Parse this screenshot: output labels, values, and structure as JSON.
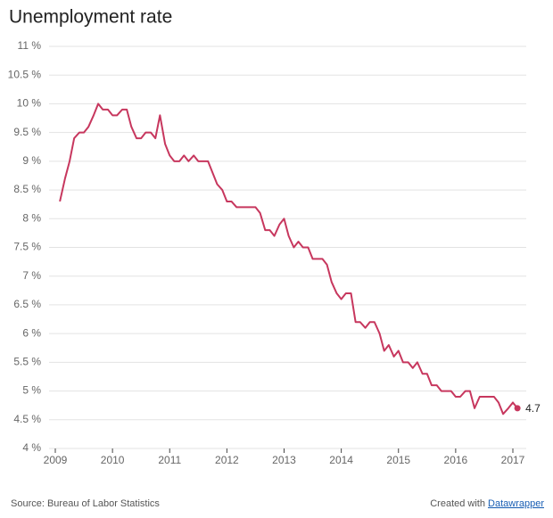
{
  "chart_data": {
    "type": "line",
    "title": "Unemployment rate",
    "x": [
      2009.08,
      2009.17,
      2009.25,
      2009.33,
      2009.42,
      2009.5,
      2009.58,
      2009.67,
      2009.75,
      2009.83,
      2009.92,
      2010.0,
      2010.08,
      2010.17,
      2010.25,
      2010.33,
      2010.42,
      2010.5,
      2010.58,
      2010.67,
      2010.75,
      2010.83,
      2010.92,
      2011.0,
      2011.08,
      2011.17,
      2011.25,
      2011.33,
      2011.42,
      2011.5,
      2011.58,
      2011.67,
      2011.75,
      2011.83,
      2011.92,
      2012.0,
      2012.08,
      2012.17,
      2012.25,
      2012.33,
      2012.42,
      2012.5,
      2012.58,
      2012.67,
      2012.75,
      2012.83,
      2012.92,
      2013.0,
      2013.08,
      2013.17,
      2013.25,
      2013.33,
      2013.42,
      2013.5,
      2013.58,
      2013.67,
      2013.75,
      2013.83,
      2013.92,
      2014.0,
      2014.08,
      2014.17,
      2014.25,
      2014.33,
      2014.42,
      2014.5,
      2014.58,
      2014.67,
      2014.75,
      2014.83,
      2014.92,
      2015.0,
      2015.08,
      2015.17,
      2015.25,
      2015.33,
      2015.42,
      2015.5,
      2015.58,
      2015.67,
      2015.75,
      2015.83,
      2015.92,
      2016.0,
      2016.08,
      2016.17,
      2016.25,
      2016.33,
      2016.42,
      2016.5,
      2016.58,
      2016.67,
      2016.75,
      2016.83,
      2016.92,
      2017.0,
      2017.08
    ],
    "series": [
      {
        "color": "#c7375e",
        "values": [
          8.3,
          8.7,
          9.0,
          9.4,
          9.5,
          9.5,
          9.6,
          9.8,
          10.0,
          9.9,
          9.9,
          9.8,
          9.8,
          9.9,
          9.9,
          9.6,
          9.4,
          9.4,
          9.5,
          9.5,
          9.4,
          9.8,
          9.3,
          9.1,
          9.0,
          9.0,
          9.1,
          9.0,
          9.1,
          9.0,
          9.0,
          9.0,
          8.8,
          8.6,
          8.5,
          8.3,
          8.3,
          8.2,
          8.2,
          8.2,
          8.2,
          8.2,
          8.1,
          7.8,
          7.8,
          7.7,
          7.9,
          8.0,
          7.7,
          7.5,
          7.6,
          7.5,
          7.5,
          7.3,
          7.3,
          7.3,
          7.2,
          6.9,
          6.7,
          6.6,
          6.7,
          6.7,
          6.2,
          6.2,
          6.1,
          6.2,
          6.2,
          6.0,
          5.7,
          5.8,
          5.6,
          5.7,
          5.5,
          5.5,
          5.4,
          5.5,
          5.3,
          5.3,
          5.1,
          5.1,
          5.0,
          5.0,
          5.0,
          4.9,
          4.9,
          5.0,
          5.0,
          4.7,
          4.9,
          4.9,
          4.9,
          4.9,
          4.8,
          4.6,
          4.7,
          4.8,
          4.7
        ]
      }
    ],
    "xlim": [
      2009,
      2017
    ],
    "xticks": [
      2009,
      2010,
      2011,
      2012,
      2013,
      2014,
      2015,
      2016,
      2017
    ],
    "ylim": [
      4,
      11
    ],
    "yticks": [
      {
        "value": 4,
        "label": "4 %"
      },
      {
        "value": 4.5,
        "label": "4.5 %"
      },
      {
        "value": 5,
        "label": "5 %"
      },
      {
        "value": 5.5,
        "label": "5.5 %"
      },
      {
        "value": 6,
        "label": "6 %"
      },
      {
        "value": 6.5,
        "label": "6.5 %"
      },
      {
        "value": 7,
        "label": "7 %"
      },
      {
        "value": 7.5,
        "label": "7.5 %"
      },
      {
        "value": 8,
        "label": "8 %"
      },
      {
        "value": 8.5,
        "label": "8.5 %"
      },
      {
        "value": 9,
        "label": "9 %"
      },
      {
        "value": 9.5,
        "label": "9.5 %"
      },
      {
        "value": 10,
        "label": "10 %"
      },
      {
        "value": 10.5,
        "label": "10.5 %"
      },
      {
        "value": 11,
        "label": "11 %"
      }
    ],
    "grid": true,
    "source": "Source: Bureau of Labor Statistics",
    "credit": "Created with",
    "credit_link": "Datawrapper"
  }
}
